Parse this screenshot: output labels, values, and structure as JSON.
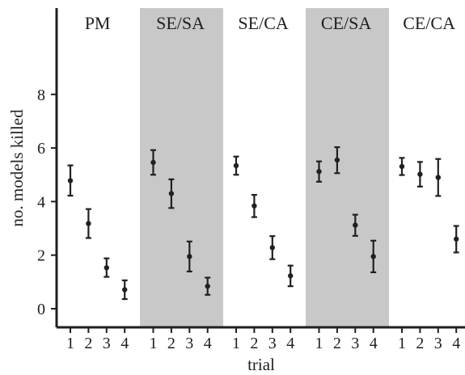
{
  "chart_data": {
    "type": "scatter",
    "xlabel": "trial",
    "ylabel": "no. models killed",
    "ylim": [
      0,
      8
    ],
    "y_ticks": [
      0,
      2,
      4,
      6,
      8
    ],
    "x_ticks": [
      "1",
      "2",
      "3",
      "4"
    ],
    "shaded_groups": [
      "SE/SA",
      "CE/SA"
    ],
    "colors": {
      "shade": "#c8c8c8",
      "point": "#202020",
      "axis": "#202020"
    },
    "groups": [
      {
        "name": "PM",
        "points": [
          {
            "trial": "1",
            "mean": 4.78,
            "lower": 4.22,
            "upper": 5.35
          },
          {
            "trial": "2",
            "mean": 3.18,
            "lower": 2.64,
            "upper": 3.72
          },
          {
            "trial": "3",
            "mean": 1.53,
            "lower": 1.19,
            "upper": 1.88
          },
          {
            "trial": "4",
            "mean": 0.71,
            "lower": 0.36,
            "upper": 1.06
          }
        ]
      },
      {
        "name": "SE/SA",
        "points": [
          {
            "trial": "1",
            "mean": 5.46,
            "lower": 5.0,
            "upper": 5.92
          },
          {
            "trial": "2",
            "mean": 4.3,
            "lower": 3.76,
            "upper": 4.83
          },
          {
            "trial": "3",
            "mean": 1.95,
            "lower": 1.39,
            "upper": 2.51
          },
          {
            "trial": "4",
            "mean": 0.84,
            "lower": 0.52,
            "upper": 1.16
          }
        ]
      },
      {
        "name": "SE/CA",
        "points": [
          {
            "trial": "1",
            "mean": 5.34,
            "lower": 5.0,
            "upper": 5.68
          },
          {
            "trial": "2",
            "mean": 3.84,
            "lower": 3.42,
            "upper": 4.25
          },
          {
            "trial": "3",
            "mean": 2.28,
            "lower": 1.85,
            "upper": 2.71
          },
          {
            "trial": "4",
            "mean": 1.23,
            "lower": 0.84,
            "upper": 1.61
          }
        ]
      },
      {
        "name": "CE/SA",
        "points": [
          {
            "trial": "1",
            "mean": 5.12,
            "lower": 4.74,
            "upper": 5.5
          },
          {
            "trial": "2",
            "mean": 5.55,
            "lower": 5.06,
            "upper": 6.03
          },
          {
            "trial": "3",
            "mean": 3.12,
            "lower": 2.72,
            "upper": 3.51
          },
          {
            "trial": "4",
            "mean": 1.95,
            "lower": 1.36,
            "upper": 2.54
          }
        ]
      },
      {
        "name": "CE/CA",
        "points": [
          {
            "trial": "1",
            "mean": 5.31,
            "lower": 4.99,
            "upper": 5.63
          },
          {
            "trial": "2",
            "mean": 5.02,
            "lower": 4.56,
            "upper": 5.48
          },
          {
            "trial": "3",
            "mean": 4.9,
            "lower": 4.21,
            "upper": 5.59
          },
          {
            "trial": "4",
            "mean": 2.6,
            "lower": 2.1,
            "upper": 3.09
          }
        ]
      }
    ]
  }
}
